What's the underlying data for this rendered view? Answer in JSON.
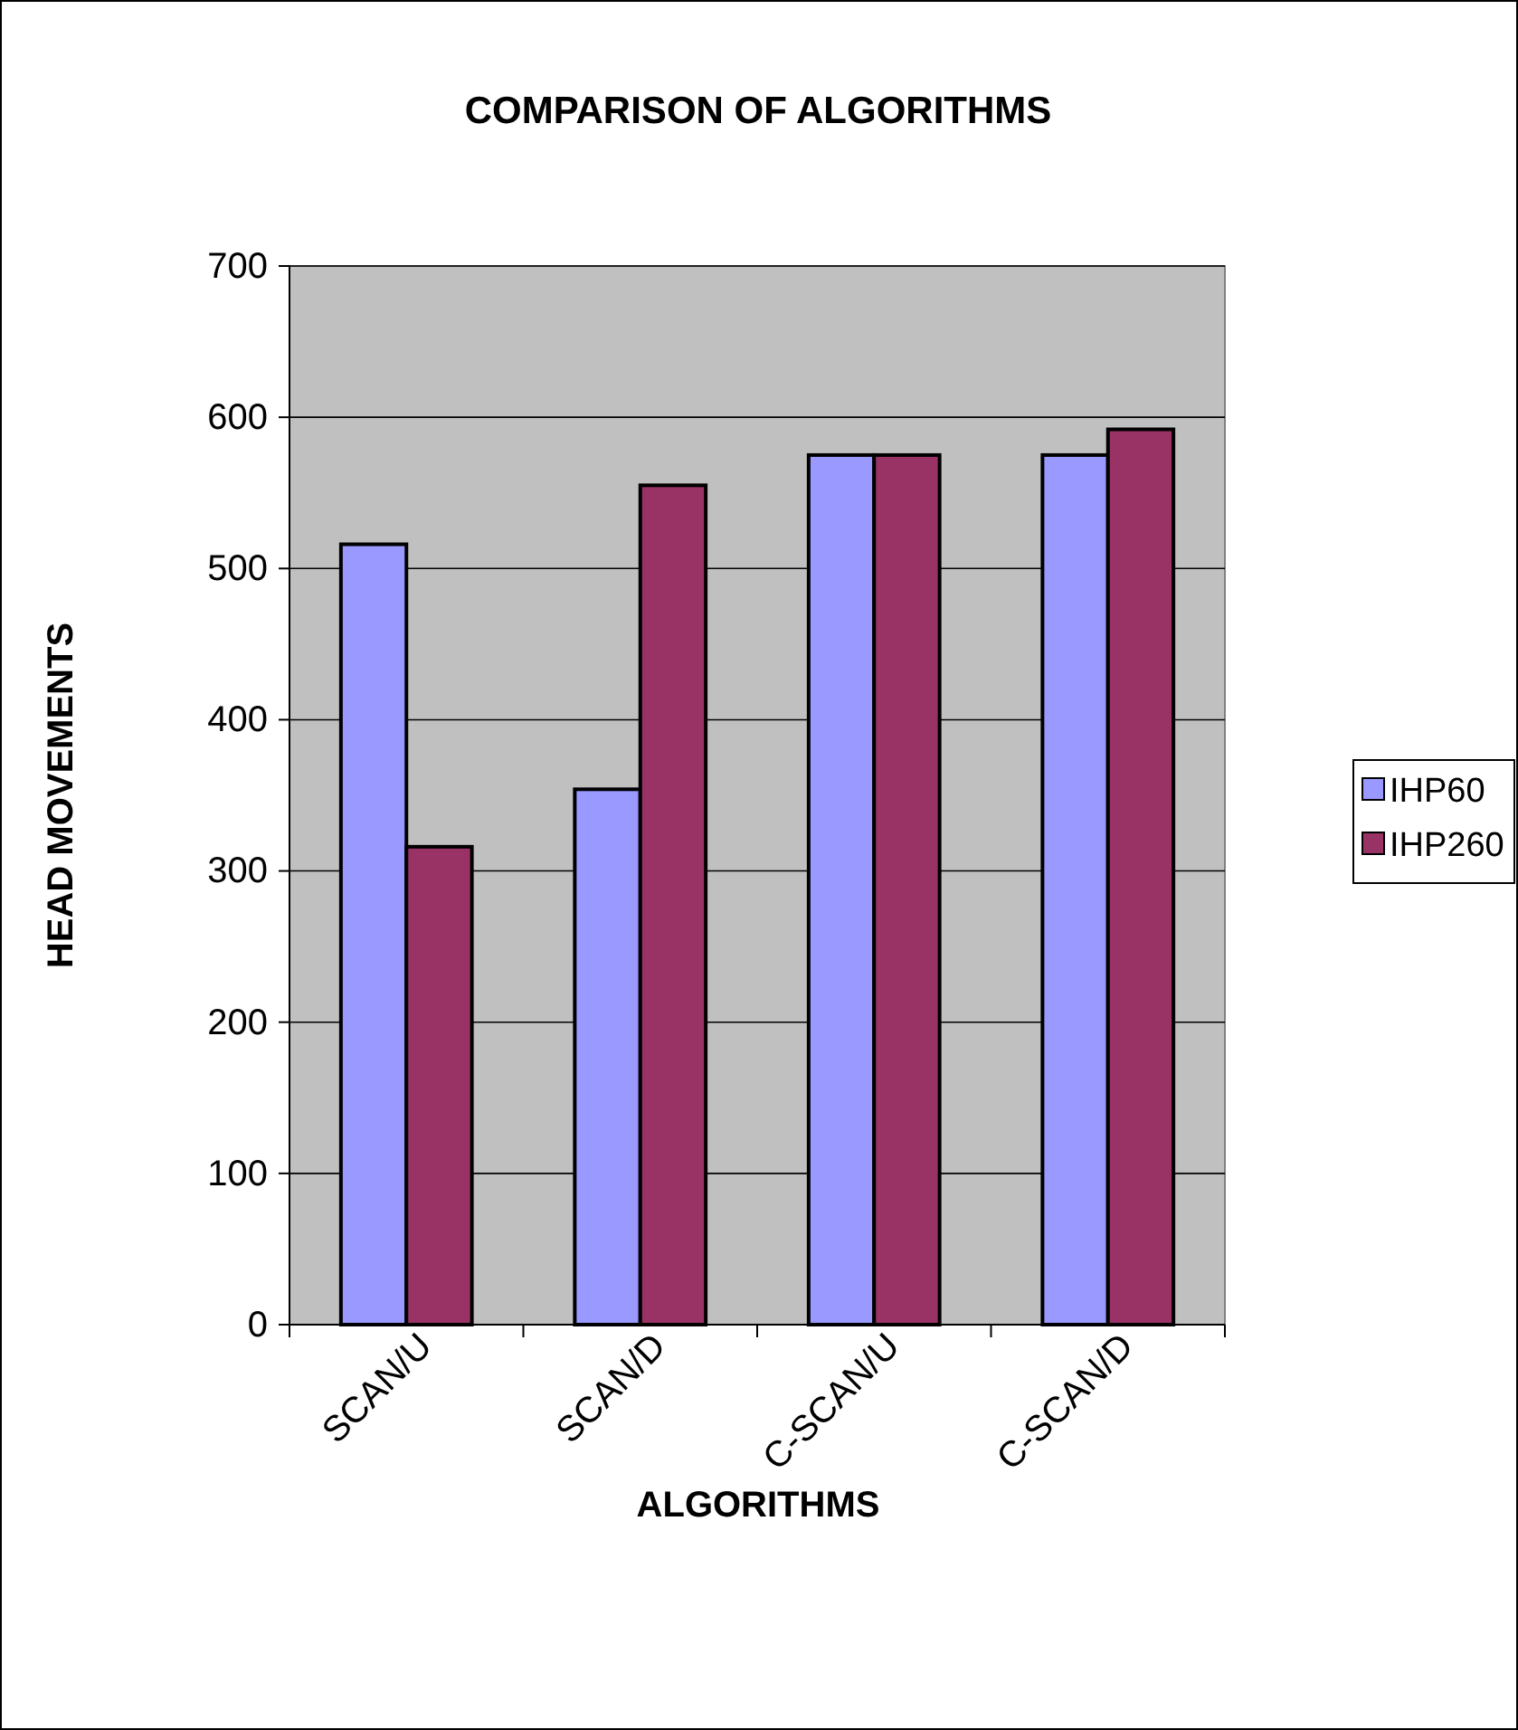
{
  "chart_data": {
    "type": "bar",
    "title": "COMPARISON OF ALGORITHMS",
    "xlabel": "ALGORITHMS",
    "ylabel": "HEAD MOVEMENTS",
    "categories": [
      "SCAN/U",
      "SCAN/D",
      "C-SCAN/U",
      "C-SCAN/D"
    ],
    "series": [
      {
        "name": "IHP60",
        "color": "#9999ff",
        "values": [
          516,
          354,
          575,
          575
        ]
      },
      {
        "name": "IHP260",
        "color": "#993366",
        "values": [
          316,
          555,
          575,
          592
        ]
      }
    ],
    "ylim": [
      0,
      700
    ],
    "yticks": [
      0,
      100,
      200,
      300,
      400,
      500,
      600,
      700
    ],
    "grid": "y",
    "legend": "right"
  }
}
